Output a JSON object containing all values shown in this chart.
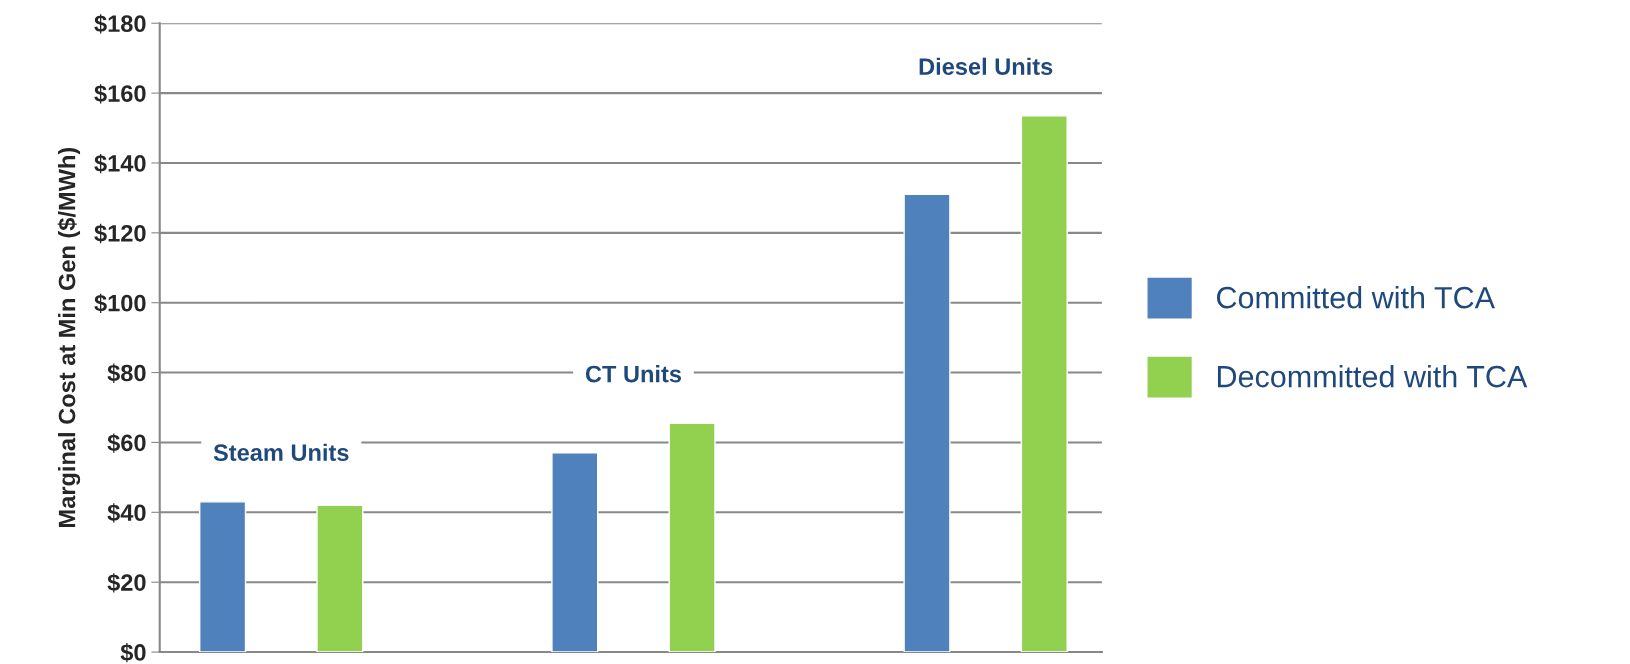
{
  "chart_data": {
    "type": "bar",
    "ylabel": "Marginal Cost at Min Gen ($/MWh)",
    "categories": [
      "Steam Units",
      "CT Units",
      "Diesel Units"
    ],
    "series": [
      {
        "name": "Committed with TCA",
        "color": "#4f81bd",
        "values": [
          43,
          57,
          131
        ]
      },
      {
        "name": "Decommitted with TCA",
        "color": "#92d050",
        "values": [
          42,
          65.5,
          153.5
        ]
      }
    ],
    "ylim": [
      0,
      180
    ],
    "yticks": [
      {
        "value": 0,
        "label": "$0"
      },
      {
        "value": 20,
        "label": "$20"
      },
      {
        "value": 40,
        "label": "$40"
      },
      {
        "value": 60,
        "label": "$60"
      },
      {
        "value": 80,
        "label": "$80"
      },
      {
        "value": 100,
        "label": "$100"
      },
      {
        "value": 120,
        "label": "$120"
      },
      {
        "value": 140,
        "label": "$140"
      },
      {
        "value": 160,
        "label": "$160"
      },
      {
        "value": 180,
        "label": "$180"
      }
    ],
    "grid": "y",
    "legend": "right"
  }
}
